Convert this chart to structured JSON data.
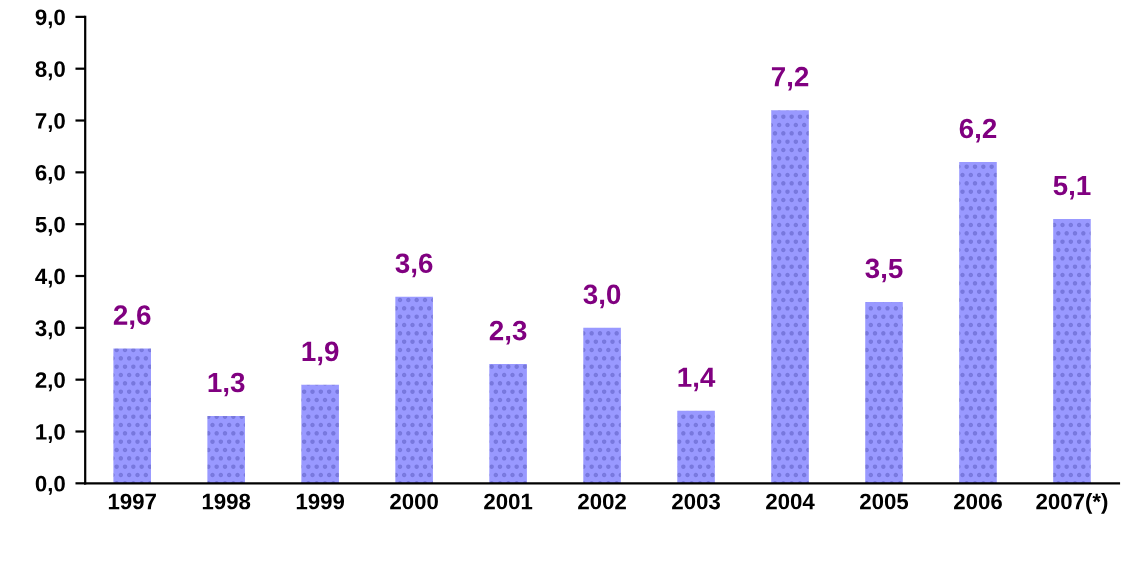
{
  "chart_data": {
    "type": "bar",
    "categories": [
      "1997",
      "1998",
      "1999",
      "2000",
      "2001",
      "2002",
      "2003",
      "2004",
      "2005",
      "2006",
      "2007(*)"
    ],
    "values": [
      2.6,
      1.3,
      1.9,
      3.6,
      2.3,
      3.0,
      1.4,
      7.2,
      3.5,
      6.2,
      5.1
    ],
    "value_labels": [
      "2,6",
      "1,3",
      "1,9",
      "3,6",
      "2,3",
      "3,0",
      "1,4",
      "7,2",
      "3,5",
      "6,2",
      "5,1"
    ],
    "color": "#9999ff",
    "ylim": [
      0,
      9
    ],
    "yticks": [
      {
        "value": 0,
        "label": "0,0"
      },
      {
        "value": 1,
        "label": "1,0"
      },
      {
        "value": 2,
        "label": "2,0"
      },
      {
        "value": 3,
        "label": "3,0"
      },
      {
        "value": 4,
        "label": "4,0"
      },
      {
        "value": 5,
        "label": "5,0"
      },
      {
        "value": 6,
        "label": "6,0"
      },
      {
        "value": 7,
        "label": "7,0"
      },
      {
        "value": 8,
        "label": "8,0"
      },
      {
        "value": 9,
        "label": "9,0"
      }
    ],
    "grid": false
  }
}
